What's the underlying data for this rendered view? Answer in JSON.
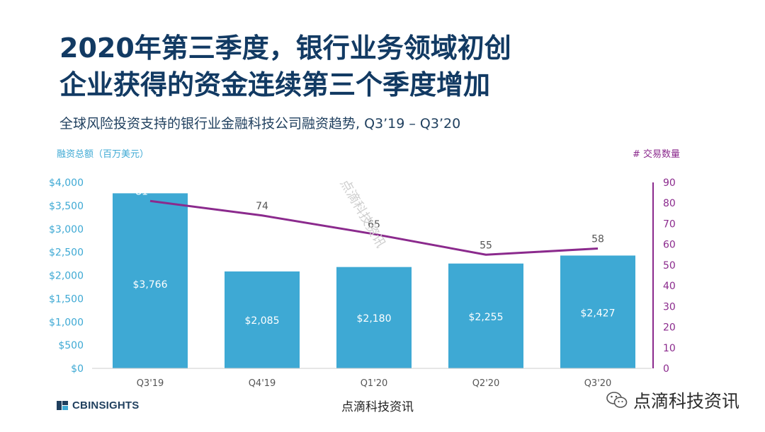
{
  "title_line1": "2020年第三季度，银行业务领域初创",
  "title_line2": "企业获得的资金连续第三个季度增加",
  "subtitle": "全球风险投资支持的银行业金融科技公司融资趋势, Q3’19 – Q3’20",
  "watermark": "点滴科技资讯",
  "footer": {
    "logo_text": "CBINSIGHTS",
    "center_text": "点滴科技资讯",
    "right_text": "点滴科技资讯",
    "right_icon": "wechat-icon"
  },
  "colors": {
    "bar": "#3ea9d4",
    "line": "#8b2a8d",
    "left_axis_text": "#3ea9d4",
    "right_axis_text": "#8b2a8d",
    "title": "#123a63"
  },
  "chart_data": {
    "type": "bar",
    "categories": [
      "Q3'19",
      "Q4'19",
      "Q1'20",
      "Q2'20",
      "Q3'20"
    ],
    "series": [
      {
        "name": "融资总额（百万美元）",
        "type": "bar",
        "axis": "left",
        "values": [
          3766,
          2085,
          2180,
          2255,
          2427
        ],
        "labels": [
          "$3,766",
          "$2,085",
          "$2,180",
          "$2,255",
          "$2,427"
        ]
      },
      {
        "name": "# 交易数量",
        "type": "line",
        "axis": "right",
        "values": [
          81,
          74,
          65,
          55,
          58
        ],
        "labels": [
          "81",
          "74",
          "65",
          "55",
          "58"
        ]
      }
    ],
    "y_left": {
      "label": "融资总额（百万美元）",
      "range": [
        0,
        4000
      ],
      "ticks": [
        0,
        500,
        1000,
        1500,
        2000,
        2500,
        3000,
        3500,
        4000
      ],
      "tick_labels": [
        "$0",
        "$500",
        "$1,000",
        "$1,500",
        "$2,000",
        "$2,500",
        "$3,000",
        "$3,500",
        "$4,000"
      ]
    },
    "y_right": {
      "label": "# 交易数量",
      "range": [
        0,
        90
      ],
      "ticks": [
        0,
        10,
        20,
        30,
        40,
        50,
        60,
        70,
        80,
        90
      ],
      "tick_labels": [
        "0",
        "10",
        "20",
        "30",
        "40",
        "50",
        "60",
        "70",
        "80",
        "90"
      ]
    },
    "grid": false,
    "legend": "none"
  }
}
